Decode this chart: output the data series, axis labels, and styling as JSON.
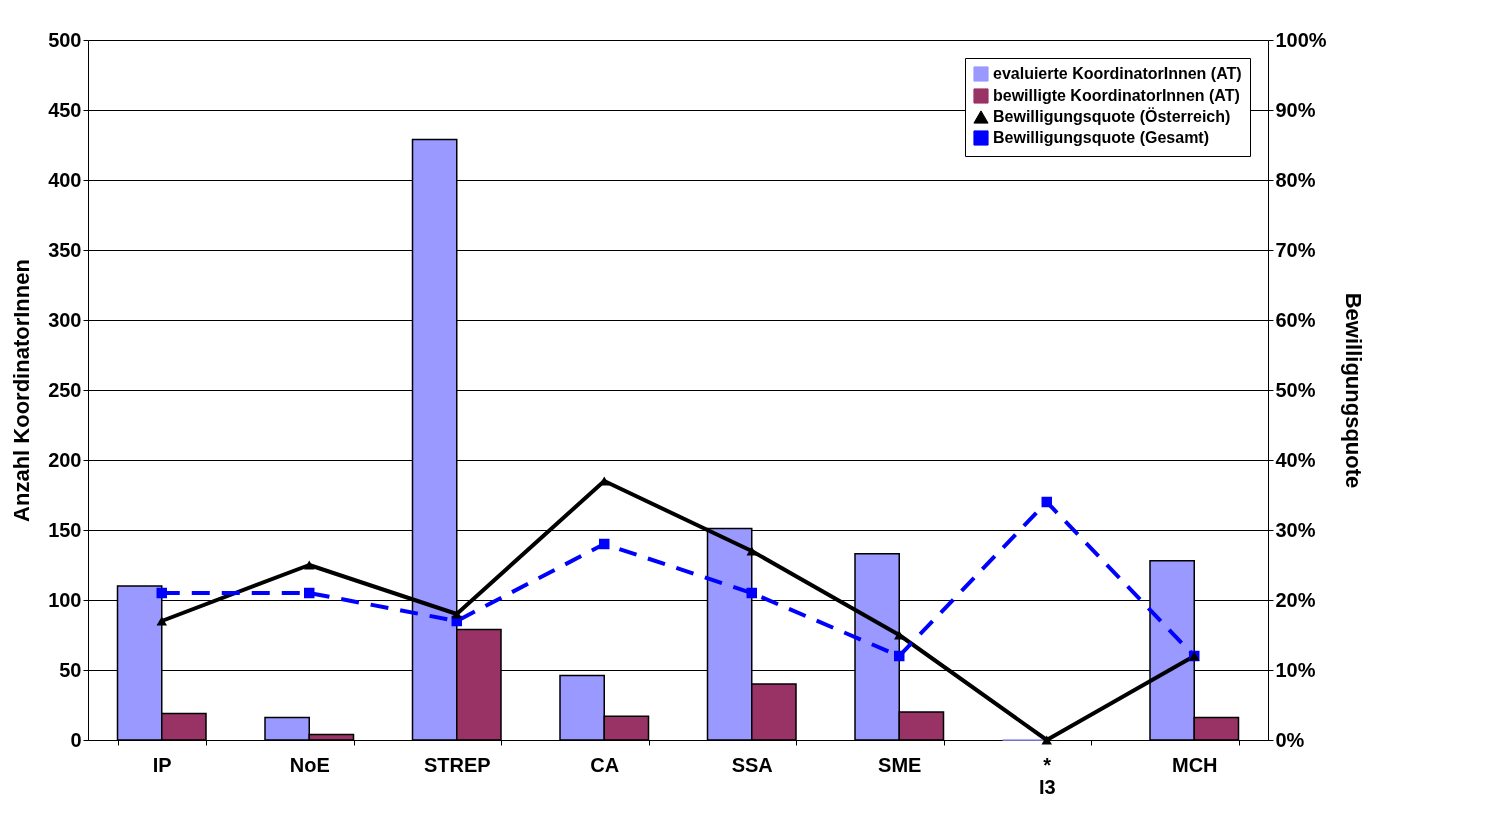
{
  "chart_data": {
    "type": "bar",
    "categories": [
      "IP",
      "NoE",
      "STREP",
      "CA",
      "SSA",
      "SME",
      "*\nI3",
      "MCH"
    ],
    "series": [
      {
        "name": "evaluierte KoordinatorInnen (AT)",
        "color": "#9999ff",
        "values": [
          110,
          16,
          429,
          46,
          151,
          133,
          0,
          128
        ]
      },
      {
        "name": "bewilligte KoordinatorInnen (AT)",
        "color": "#993366",
        "values": [
          19,
          4,
          79,
          17,
          40,
          20,
          null,
          16
        ]
      },
      {
        "name": "Bewilligungsquote (Österreich)",
        "type": "line",
        "axis": "y2",
        "color": "#000000",
        "marker": "triangle",
        "line_style": "solid",
        "values": [
          17,
          25,
          18,
          37,
          27,
          15,
          0,
          12
        ]
      },
      {
        "name": "Bewilligungsquote (Gesamt)",
        "type": "line",
        "axis": "y2",
        "color": "#0000ff",
        "marker": "square",
        "line_style": "dashed",
        "values": [
          21,
          21,
          17,
          28,
          21,
          12,
          34,
          12
        ]
      }
    ],
    "ylabel": "Anzahl KoordinatorInnen",
    "y2label": "Bewilligungsquote",
    "ylim": [
      0,
      500
    ],
    "yticks": [
      0,
      50,
      100,
      150,
      200,
      250,
      300,
      350,
      400,
      450,
      500
    ],
    "y2lim": [
      0,
      100
    ],
    "y2ticks": [
      {
        "value": 0,
        "label": "0%"
      },
      {
        "value": 10,
        "label": "10%"
      },
      {
        "value": 20,
        "label": "20%"
      },
      {
        "value": 30,
        "label": "30%"
      },
      {
        "value": 40,
        "label": "40%"
      },
      {
        "value": 50,
        "label": "50%"
      },
      {
        "value": 60,
        "label": "60%"
      },
      {
        "value": 70,
        "label": "70%"
      },
      {
        "value": 80,
        "label": "80%"
      },
      {
        "value": 90,
        "label": "90%"
      },
      {
        "value": 100,
        "label": "100%"
      }
    ],
    "grid": "y",
    "legend": "top right"
  }
}
